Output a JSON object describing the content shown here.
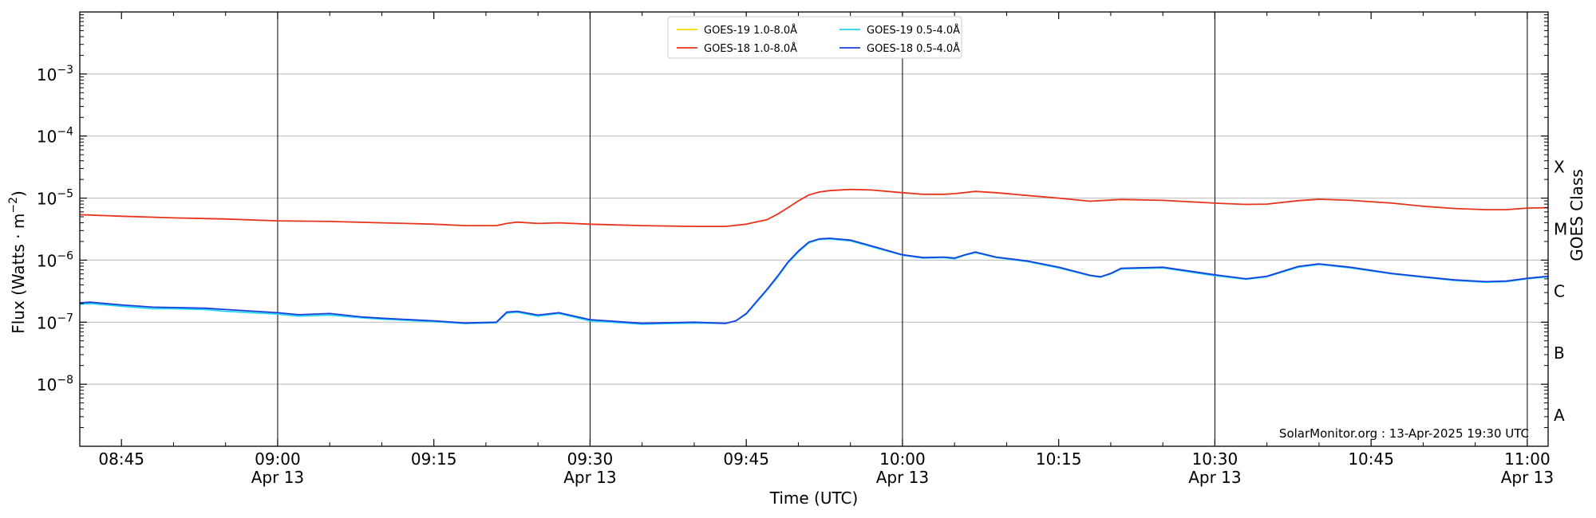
{
  "chart_data": {
    "type": "line",
    "xlabel": "Time (UTC)",
    "ylabel_base": "Flux (Watts · m",
    "ylabel_exp": "−2",
    "ylabel_close": ")",
    "y2label": "GOES Class",
    "yscale": "log",
    "ylim_exp": [
      -9,
      -2
    ],
    "xlim": [
      "08:41",
      "11:02"
    ],
    "x_ticks": [
      {
        "time": "08:45",
        "label": "08:45",
        "sub": ""
      },
      {
        "time": "09:00",
        "label": "09:00",
        "sub": "Apr 13"
      },
      {
        "time": "09:15",
        "label": "09:15",
        "sub": ""
      },
      {
        "time": "09:30",
        "label": "09:30",
        "sub": "Apr 13"
      },
      {
        "time": "09:45",
        "label": "09:45",
        "sub": ""
      },
      {
        "time": "10:00",
        "label": "10:00",
        "sub": "Apr 13"
      },
      {
        "time": "10:15",
        "label": "10:15",
        "sub": ""
      },
      {
        "time": "10:30",
        "label": "10:30",
        "sub": "Apr 13"
      },
      {
        "time": "10:45",
        "label": "10:45",
        "sub": ""
      },
      {
        "time": "11:00",
        "label": "11:00",
        "sub": "Apr 13"
      }
    ],
    "vlines": [
      "09:00",
      "09:30",
      "10:00",
      "10:30",
      "11:00"
    ],
    "y_ticks": [
      {
        "exp": -8,
        "base": "10",
        "sup": "−8"
      },
      {
        "exp": -7,
        "base": "10",
        "sup": "−7"
      },
      {
        "exp": -6,
        "base": "10",
        "sup": "−6"
      },
      {
        "exp": -5,
        "base": "10",
        "sup": "−5"
      },
      {
        "exp": -4,
        "base": "10",
        "sup": "−4"
      },
      {
        "exp": -3,
        "base": "10",
        "sup": "−3"
      }
    ],
    "goes_classes": [
      {
        "label": "A",
        "exp": -8.5
      },
      {
        "label": "B",
        "exp": -7.5
      },
      {
        "label": "C",
        "exp": -6.5
      },
      {
        "label": "M",
        "exp": -5.5
      },
      {
        "label": "X",
        "exp": -4.5
      }
    ],
    "grid": true,
    "legend": {
      "placement": "top-center",
      "columns": [
        [
          "GOES-19 1.0-8.0Å",
          "GOES-18 1.0-8.0Å"
        ],
        [
          "GOES-19 0.5-4.0Å",
          "GOES-18 0.5-4.0Å"
        ]
      ]
    },
    "annotation": "SolarMonitor.org : 13-Apr-2025 19:30 UTC",
    "series": [
      {
        "name": "GOES-19 1.0-8.0Å",
        "color": "#ffd700",
        "x": [],
        "y": []
      },
      {
        "name": "GOES-18 1.0-8.0Å",
        "color": "#e8341c",
        "x": [
          "08:41",
          "08:45",
          "08:50",
          "08:55",
          "09:00",
          "09:05",
          "09:10",
          "09:15",
          "09:18",
          "09:21",
          "09:22",
          "09:23",
          "09:25",
          "09:27",
          "09:30",
          "09:35",
          "09:40",
          "09:43",
          "09:45",
          "09:47",
          "09:48",
          "09:49",
          "09:50",
          "09:51",
          "09:52",
          "09:53",
          "09:55",
          "09:57",
          "10:00",
          "10:02",
          "10:04",
          "10:05",
          "10:07",
          "10:09",
          "10:12",
          "10:15",
          "10:18",
          "10:21",
          "10:25",
          "10:30",
          "10:33",
          "10:35",
          "10:38",
          "10:40",
          "10:43",
          "10:47",
          "10:50",
          "10:53",
          "10:56",
          "10:58",
          "11:00",
          "11:02"
        ],
        "y": [
          5.4e-06,
          5.1e-06,
          4.8e-06,
          4.6e-06,
          4.3e-06,
          4.2e-06,
          4e-06,
          3.8e-06,
          3.6e-06,
          3.6e-06,
          3.9e-06,
          4.1e-06,
          3.9e-06,
          4e-06,
          3.8e-06,
          3.6e-06,
          3.5e-06,
          3.5e-06,
          3.8e-06,
          4.5e-06,
          5.5e-06,
          7e-06,
          9e-06,
          1.12e-05,
          1.25e-05,
          1.32e-05,
          1.38e-05,
          1.35e-05,
          1.22e-05,
          1.15e-05,
          1.15e-05,
          1.18e-05,
          1.28e-05,
          1.22e-05,
          1.1e-05,
          1e-05,
          8.9e-06,
          9.5e-06,
          9.2e-06,
          8.3e-06,
          7.9e-06,
          8e-06,
          9.1e-06,
          9.6e-06,
          9.2e-06,
          8.3e-06,
          7.4e-06,
          6.8e-06,
          6.5e-06,
          6.5e-06,
          6.9e-06,
          7e-06
        ]
      },
      {
        "name": "GOES-19 0.5-4.0Å",
        "color": "#1fd7ee",
        "x": [
          "08:41",
          "08:42",
          "08:45",
          "08:48",
          "08:50",
          "08:53",
          "08:55",
          "09:00",
          "09:02",
          "09:05",
          "09:08",
          "09:10",
          "09:15",
          "09:18",
          "09:21",
          "09:22",
          "09:23",
          "09:25",
          "09:27",
          "09:30",
          "09:35",
          "09:40",
          "09:43",
          "09:44",
          "09:45",
          "09:47",
          "09:48",
          "09:49",
          "09:50",
          "09:51",
          "09:52",
          "09:53",
          "09:55",
          "09:57",
          "10:00",
          "10:02",
          "10:04",
          "10:05",
          "10:06",
          "10:07",
          "10:09",
          "10:12",
          "10:15",
          "10:18",
          "10:19",
          "10:20",
          "10:21",
          "10:25",
          "10:30",
          "10:33",
          "10:35",
          "10:38",
          "10:40",
          "10:43",
          "10:47",
          "10:50",
          "10:53",
          "10:56",
          "10:58",
          "11:00",
          "11:02"
        ],
        "y": [
          1.95e-07,
          2e-07,
          1.8e-07,
          1.65e-07,
          1.65e-07,
          1.6e-07,
          1.5e-07,
          1.35e-07,
          1.25e-07,
          1.3e-07,
          1.18e-07,
          1.12e-07,
          1.02e-07,
          9.5e-08,
          9.8e-08,
          1.4e-07,
          1.45e-07,
          1.25e-07,
          1.38e-07,
          1.05e-07,
          9.3e-08,
          9.7e-08,
          9.5e-08,
          1.05e-07,
          1.35e-07,
          3.3e-07,
          5.3e-07,
          9e-07,
          1.35e-06,
          1.9e-06,
          2.15e-06,
          2.2e-06,
          2.05e-06,
          1.65e-06,
          1.2e-06,
          1.08e-06,
          1.1e-06,
          1.05e-06,
          1.2e-06,
          1.32e-06,
          1.1e-06,
          9.5e-07,
          7.5e-07,
          5.6e-07,
          5.3e-07,
          6e-07,
          7.2e-07,
          7.5e-07,
          5.6e-07,
          4.9e-07,
          5.4e-07,
          7.7e-07,
          8.5e-07,
          7.5e-07,
          6e-07,
          5.3e-07,
          4.7e-07,
          4.4e-07,
          4.5e-07,
          5e-07,
          5.4e-07
        ]
      },
      {
        "name": "GOES-18 0.5-4.0Å",
        "color": "#1a3fe0",
        "x": [
          "08:41",
          "08:42",
          "08:45",
          "08:48",
          "08:50",
          "08:53",
          "08:55",
          "09:00",
          "09:02",
          "09:05",
          "09:08",
          "09:10",
          "09:15",
          "09:18",
          "09:21",
          "09:22",
          "09:23",
          "09:25",
          "09:27",
          "09:30",
          "09:35",
          "09:40",
          "09:43",
          "09:44",
          "09:45",
          "09:47",
          "09:48",
          "09:49",
          "09:50",
          "09:51",
          "09:52",
          "09:53",
          "09:55",
          "09:57",
          "10:00",
          "10:02",
          "10:04",
          "10:05",
          "10:06",
          "10:07",
          "10:09",
          "10:12",
          "10:15",
          "10:18",
          "10:19",
          "10:20",
          "10:21",
          "10:25",
          "10:30",
          "10:33",
          "10:35",
          "10:38",
          "10:40",
          "10:43",
          "10:47",
          "10:50",
          "10:53",
          "10:56",
          "10:58",
          "11:00",
          "11:02"
        ],
        "y": [
          2.05e-07,
          2.1e-07,
          1.9e-07,
          1.75e-07,
          1.72e-07,
          1.68e-07,
          1.6e-07,
          1.42e-07,
          1.32e-07,
          1.38e-07,
          1.22e-07,
          1.16e-07,
          1.05e-07,
          9.7e-08,
          1e-07,
          1.45e-07,
          1.5e-07,
          1.3e-07,
          1.42e-07,
          1.1e-07,
          9.6e-08,
          1e-07,
          9.6e-08,
          1.05e-07,
          1.38e-07,
          3.4e-07,
          5.5e-07,
          9.3e-07,
          1.4e-06,
          1.95e-06,
          2.2e-06,
          2.25e-06,
          2.1e-06,
          1.7e-06,
          1.22e-06,
          1.1e-06,
          1.12e-06,
          1.08e-06,
          1.22e-06,
          1.35e-06,
          1.12e-06,
          9.7e-07,
          7.7e-07,
          5.7e-07,
          5.4e-07,
          6.1e-07,
          7.4e-07,
          7.7e-07,
          5.8e-07,
          5e-07,
          5.5e-07,
          7.9e-07,
          8.7e-07,
          7.7e-07,
          6.1e-07,
          5.4e-07,
          4.8e-07,
          4.5e-07,
          4.6e-07,
          5.1e-07,
          5.5e-07
        ]
      }
    ]
  }
}
